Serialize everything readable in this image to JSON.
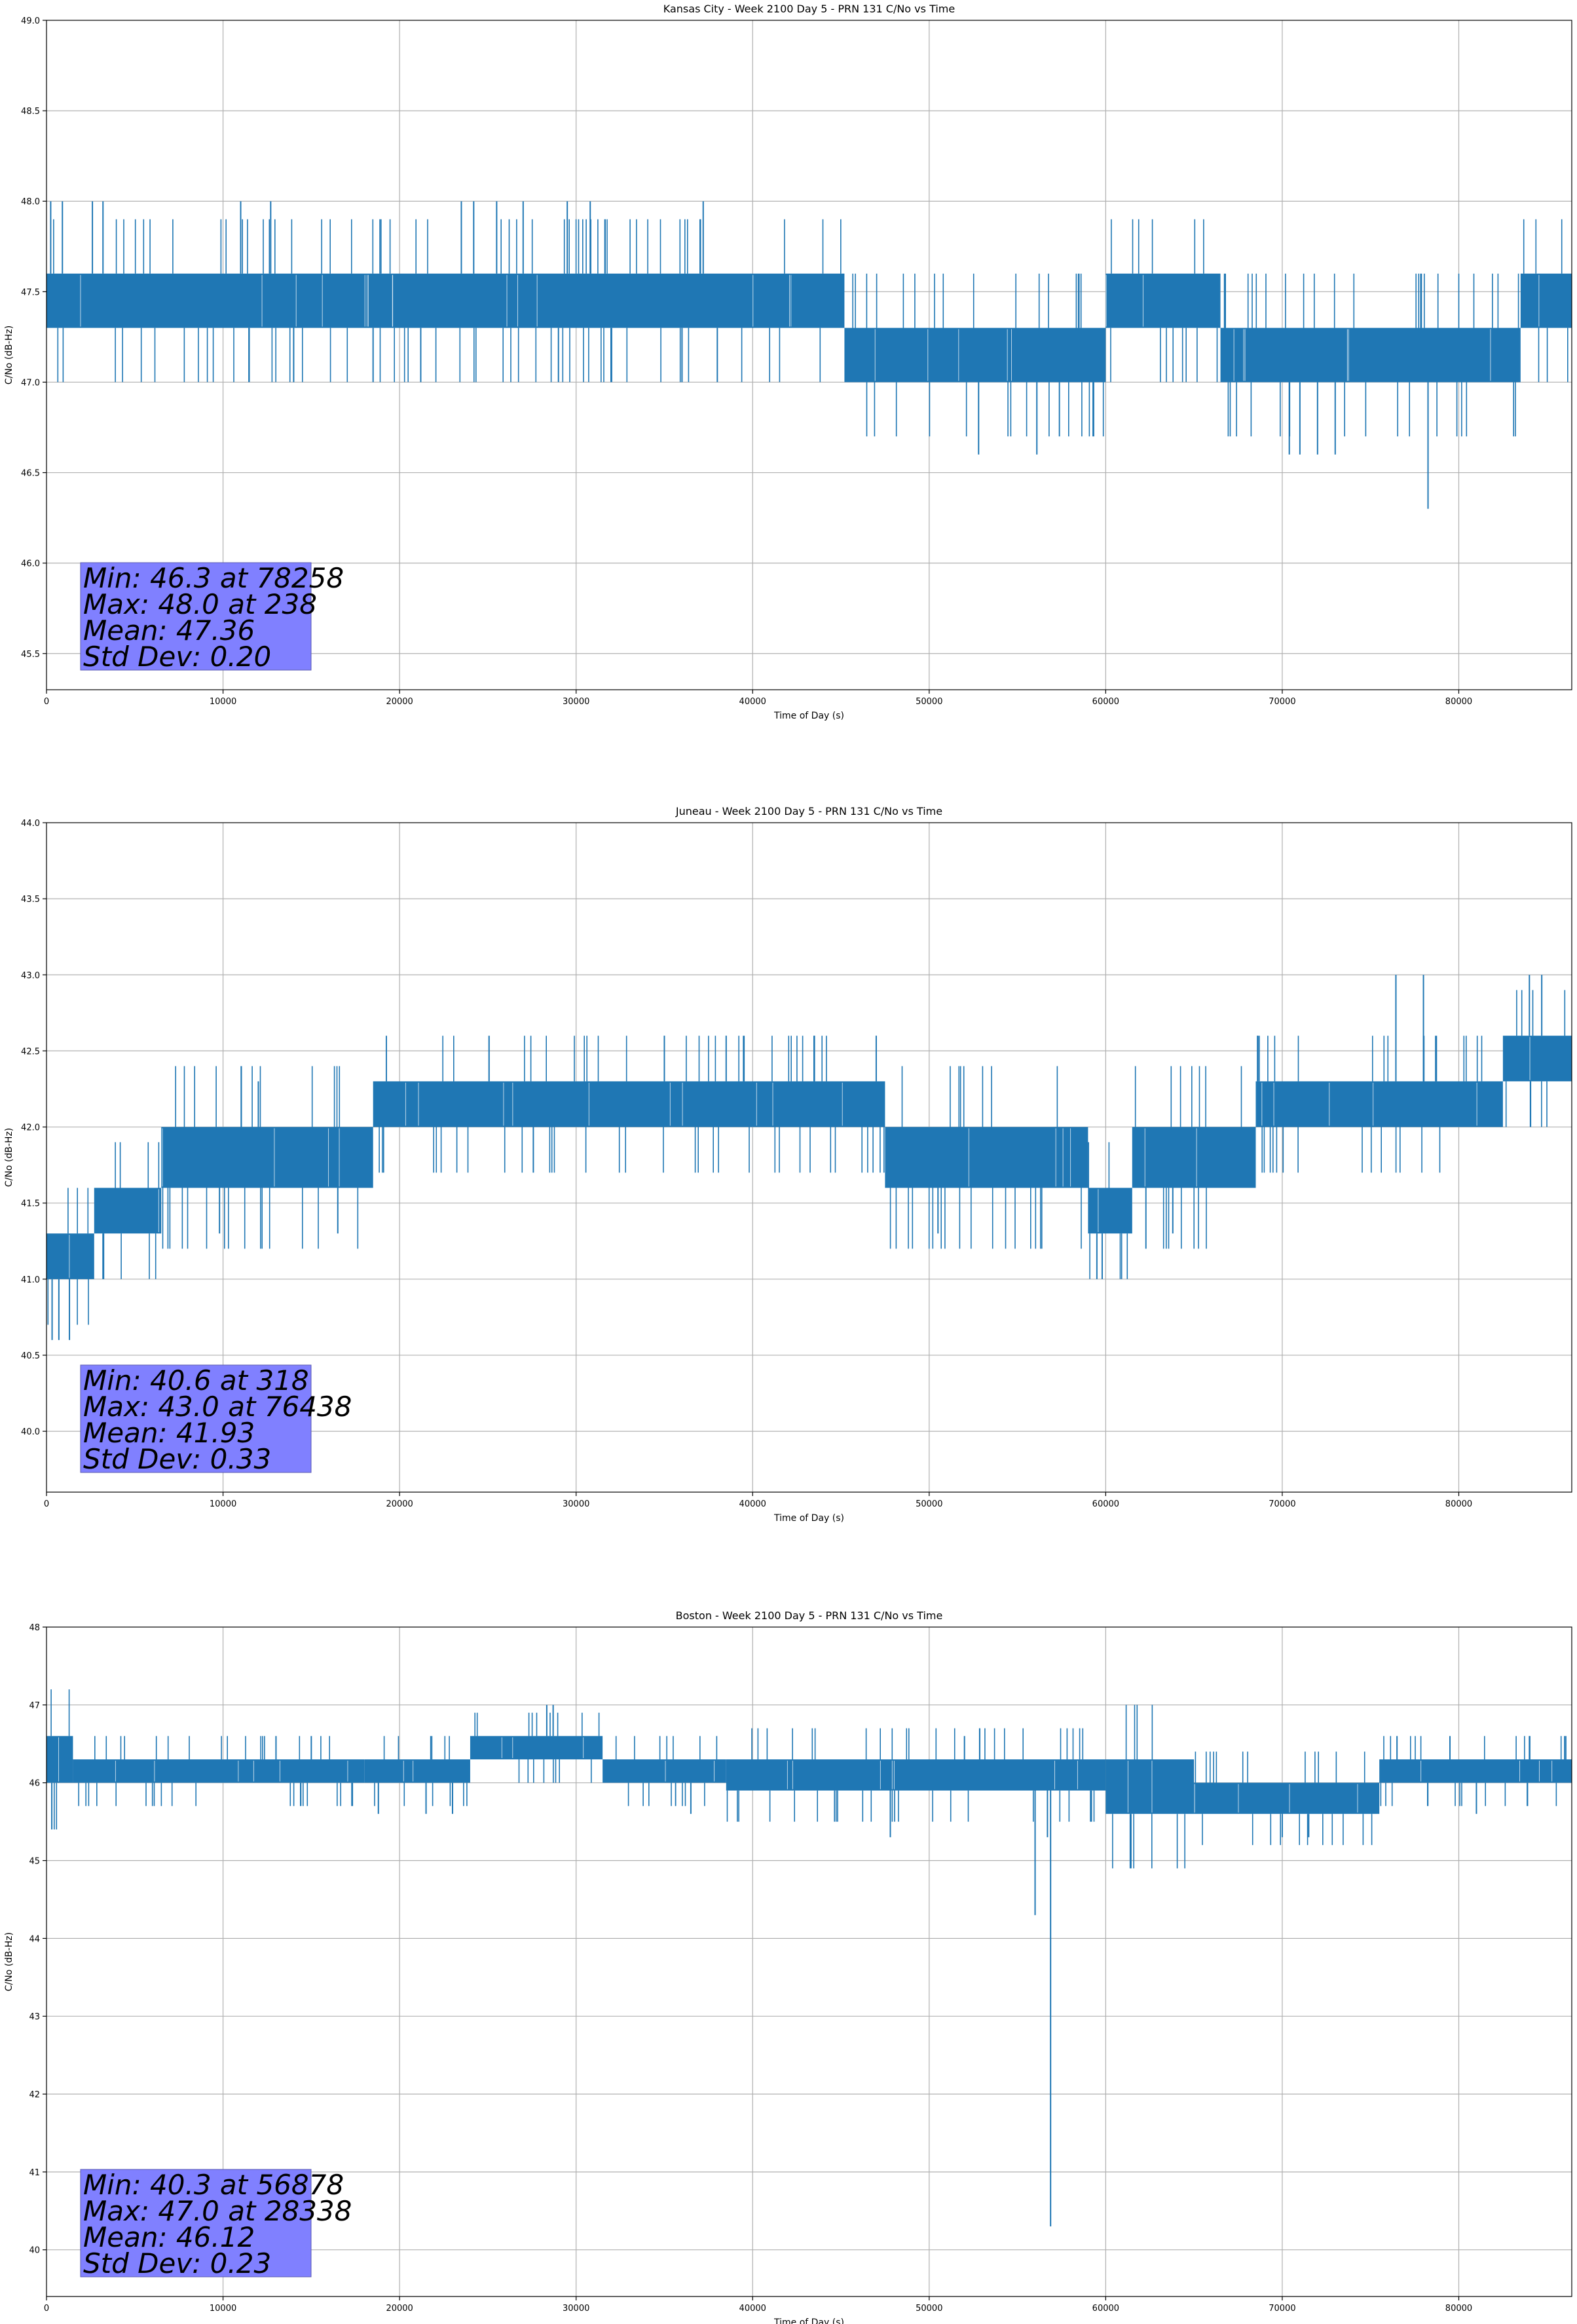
{
  "chart_data": [
    {
      "type": "line",
      "title": "Kansas City - Week 2100 Day 5 - PRN 131 C/No vs Time",
      "xlabel": "Time of Day (s)",
      "ylabel": "C/No (dB-Hz)",
      "xlim": [
        0,
        86400
      ],
      "ylim": [
        45.3,
        49.0
      ],
      "xticks": [
        0,
        10000,
        20000,
        30000,
        40000,
        50000,
        60000,
        70000,
        80000
      ],
      "yticks": [
        "45.5",
        "46.0",
        "46.5",
        "47.0",
        "47.5",
        "48.0",
        "48.5",
        "49.0"
      ],
      "grid": true,
      "color": "#1f77b4",
      "series": [
        {
          "bands": [
            {
              "x0": 0,
              "x1": 45200,
              "lo": 47.3,
              "hi": 47.6
            },
            {
              "x0": 45200,
              "x1": 60000,
              "lo": 47.0,
              "hi": 47.3
            },
            {
              "x0": 60000,
              "x1": 66500,
              "lo": 47.3,
              "hi": 47.6
            },
            {
              "x0": 66500,
              "x1": 83500,
              "lo": 47.0,
              "hi": 47.3
            },
            {
              "x0": 83500,
              "x1": 86400,
              "lo": 47.3,
              "hi": 47.6
            }
          ],
          "spikes": [
            [
              238,
              48.0
            ],
            [
              900,
              48.0
            ],
            [
              2600,
              48.0
            ],
            [
              3200,
              48.0
            ],
            [
              11000,
              48.0
            ],
            [
              12700,
              48.0
            ],
            [
              23500,
              48.0
            ],
            [
              24200,
              48.0
            ],
            [
              25500,
              48.0
            ],
            [
              27000,
              48.0
            ],
            [
              29500,
              48.0
            ],
            [
              30800,
              48.0
            ],
            [
              37200,
              48.0
            ],
            [
              14000,
              47.0
            ],
            [
              18500,
              47.0
            ],
            [
              21200,
              47.0
            ],
            [
              29000,
              47.0
            ],
            [
              36000,
              47.0
            ],
            [
              38000,
              47.0
            ],
            [
              52800,
              46.6
            ],
            [
              56100,
              46.6
            ],
            [
              70400,
              46.6
            ],
            [
              71000,
              46.6
            ],
            [
              72000,
              46.6
            ],
            [
              73000,
              46.6
            ],
            [
              78258,
              46.3
            ]
          ]
        }
      ],
      "stats": [
        "Min: 46.3 at 78258",
        "Max: 48.0 at 238",
        "Mean: 47.36",
        "Std Dev: 0.20"
      ]
    },
    {
      "type": "line",
      "title": "Juneau - Week 2100 Day 5 - PRN 131 C/No vs Time",
      "xlabel": "Time of Day (s)",
      "ylabel": "C/No (dB-Hz)",
      "xlim": [
        0,
        86400
      ],
      "ylim": [
        39.6,
        44.0
      ],
      "xticks": [
        0,
        10000,
        20000,
        30000,
        40000,
        50000,
        60000,
        70000,
        80000
      ],
      "yticks": [
        "40.0",
        "40.5",
        "41.0",
        "41.5",
        "42.0",
        "42.5",
        "43.0",
        "43.5",
        "44.0"
      ],
      "grid": true,
      "color": "#1f77b4",
      "series": [
        {
          "bands": [
            {
              "x0": 0,
              "x1": 2700,
              "lo": 41.0,
              "hi": 41.3
            },
            {
              "x0": 2700,
              "x1": 6500,
              "lo": 41.3,
              "hi": 41.6
            },
            {
              "x0": 6500,
              "x1": 18500,
              "lo": 41.6,
              "hi": 42.0
            },
            {
              "x0": 18500,
              "x1": 47500,
              "lo": 42.0,
              "hi": 42.3
            },
            {
              "x0": 47500,
              "x1": 59000,
              "lo": 41.6,
              "hi": 42.0
            },
            {
              "x0": 59000,
              "x1": 61500,
              "lo": 41.3,
              "hi": 41.6
            },
            {
              "x0": 61500,
              "x1": 68500,
              "lo": 41.6,
              "hi": 42.0
            },
            {
              "x0": 68500,
              "x1": 82500,
              "lo": 42.0,
              "hi": 42.3
            },
            {
              "x0": 82500,
              "x1": 86400,
              "lo": 42.3,
              "hi": 42.6
            }
          ],
          "spikes": [
            [
              318,
              40.6
            ],
            [
              700,
              40.6
            ],
            [
              1300,
              40.6
            ],
            [
              3200,
              41.0
            ],
            [
              59500,
              41.0
            ],
            [
              59800,
              41.0
            ],
            [
              12000,
              42.3
            ],
            [
              35000,
              42.6
            ],
            [
              38500,
              42.6
            ],
            [
              43500,
              42.6
            ],
            [
              47000,
              42.6
            ],
            [
              68600,
              42.6
            ],
            [
              76438,
              43.0
            ],
            [
              78000,
              43.0
            ],
            [
              84000,
              43.0
            ],
            [
              84700,
              43.0
            ],
            [
              50500,
              41.3
            ],
            [
              63800,
              41.3
            ],
            [
              9800,
              41.3
            ],
            [
              16500,
              41.3
            ]
          ]
        }
      ],
      "stats": [
        "Min: 40.6 at 318",
        "Max: 43.0 at 76438",
        "Mean: 41.93",
        "Std Dev: 0.33"
      ]
    },
    {
      "type": "line",
      "title": "Boston - Week 2100 Day 5 - PRN 131 C/No vs Time",
      "xlabel": "Time of Day (s)",
      "ylabel": "C/No (dB-Hz)",
      "xlim": [
        0,
        86400
      ],
      "ylim": [
        39.4,
        48.0
      ],
      "xticks": [
        0,
        10000,
        20000,
        30000,
        40000,
        50000,
        60000,
        70000,
        80000
      ],
      "yticks": [
        "40",
        "41",
        "42",
        "43",
        "44",
        "45",
        "46",
        "47",
        "48"
      ],
      "grid": true,
      "color": "#1f77b4",
      "series": [
        {
          "bands": [
            {
              "x0": 0,
              "x1": 1500,
              "lo": 46.0,
              "hi": 46.6
            },
            {
              "x0": 1500,
              "x1": 18000,
              "lo": 46.0,
              "hi": 46.3
            },
            {
              "x0": 18000,
              "x1": 24000,
              "lo": 46.0,
              "hi": 46.3
            },
            {
              "x0": 24000,
              "x1": 31500,
              "lo": 46.3,
              "hi": 46.6
            },
            {
              "x0": 31500,
              "x1": 38500,
              "lo": 46.0,
              "hi": 46.3
            },
            {
              "x0": 38500,
              "x1": 60000,
              "lo": 45.9,
              "hi": 46.3
            },
            {
              "x0": 60000,
              "x1": 65000,
              "lo": 45.6,
              "hi": 46.3
            },
            {
              "x0": 65000,
              "x1": 75500,
              "lo": 45.6,
              "hi": 46.0
            },
            {
              "x0": 75500,
              "x1": 86400,
              "lo": 46.0,
              "hi": 46.3
            }
          ],
          "spikes": [
            [
              28338,
              47.0
            ],
            [
              28700,
              47.0
            ],
            [
              56878,
              40.3
            ],
            [
              56000,
              44.3
            ],
            [
              56700,
              45.3
            ],
            [
              47800,
              45.3
            ],
            [
              70000,
              45.3
            ],
            [
              71500,
              45.3
            ],
            [
              36500,
              45.6
            ],
            [
              81000,
              45.6
            ],
            [
              18800,
              45.6
            ],
            [
              21500,
              45.6
            ],
            [
              23000,
              45.6
            ],
            [
              13000,
              46.6
            ],
            [
              15000,
              46.6
            ],
            [
              52000,
              46.6
            ],
            [
              76500,
              46.6
            ],
            [
              79500,
              46.6
            ],
            [
              84000,
              46.6
            ],
            [
              86000,
              46.6
            ]
          ]
        }
      ],
      "stats": [
        "Min: 40.3 at 56878",
        "Max: 47.0 at 28338",
        "Mean: 46.12",
        "Std Dev: 0.23"
      ]
    }
  ]
}
